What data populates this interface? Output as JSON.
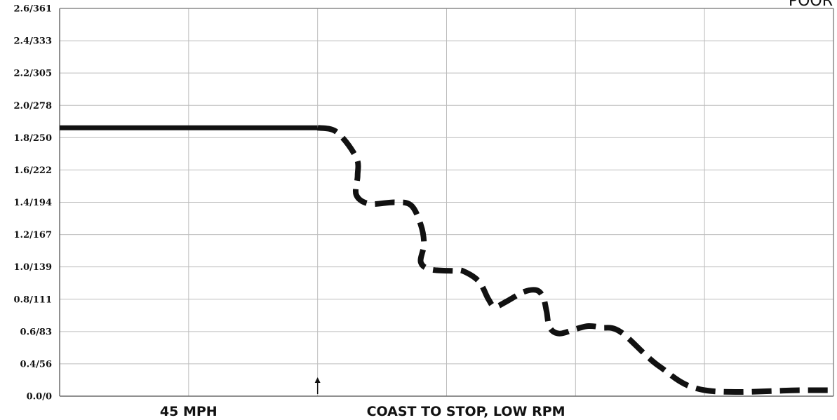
{
  "chart_data": {
    "type": "line",
    "corner_label": "POOR",
    "y_ticks": [
      "0.0/0",
      "0.4/56",
      "0.6/83",
      "0.8/111",
      "1.0/139",
      "1.2/167",
      "1.4/194",
      "1.6/222",
      "1.8/250",
      "2.0/278",
      "2.2/305",
      "2.4/333",
      "2.6/361"
    ],
    "ylim": [
      0,
      2.6
    ],
    "xlim": [
      0,
      12
    ],
    "x_captions": [
      {
        "text": "45 MPH",
        "x": 2
      },
      {
        "text": "COAST TO STOP, LOW RPM",
        "x": 6.3
      }
    ],
    "grid": true,
    "event_marker_x": 4,
    "series": [
      {
        "style": "solid",
        "x": [
          0,
          4
        ],
        "y": [
          1.8,
          1.8
        ]
      },
      {
        "style": "dashed",
        "x": [
          4,
          4.3,
          4.6,
          4.62,
          4.6,
          4.8,
          5.2,
          5.45,
          5.6,
          5.65,
          5.6,
          5.75,
          6.1,
          6.25,
          6.5,
          6.65,
          6.75,
          6.95,
          7.2,
          7.4,
          7.5,
          7.55,
          7.6,
          7.75,
          8.0,
          8.2,
          8.4,
          8.7,
          9.3,
          10.0,
          11.5,
          12.0
        ],
        "y": [
          1.8,
          1.77,
          1.6,
          1.48,
          1.35,
          1.29,
          1.3,
          1.28,
          1.15,
          1.02,
          0.9,
          0.85,
          0.84,
          0.84,
          0.77,
          0.65,
          0.6,
          0.64,
          0.7,
          0.71,
          0.66,
          0.57,
          0.46,
          0.42,
          0.45,
          0.47,
          0.46,
          0.43,
          0.2,
          0.04,
          0.04,
          0.04
        ]
      }
    ]
  }
}
